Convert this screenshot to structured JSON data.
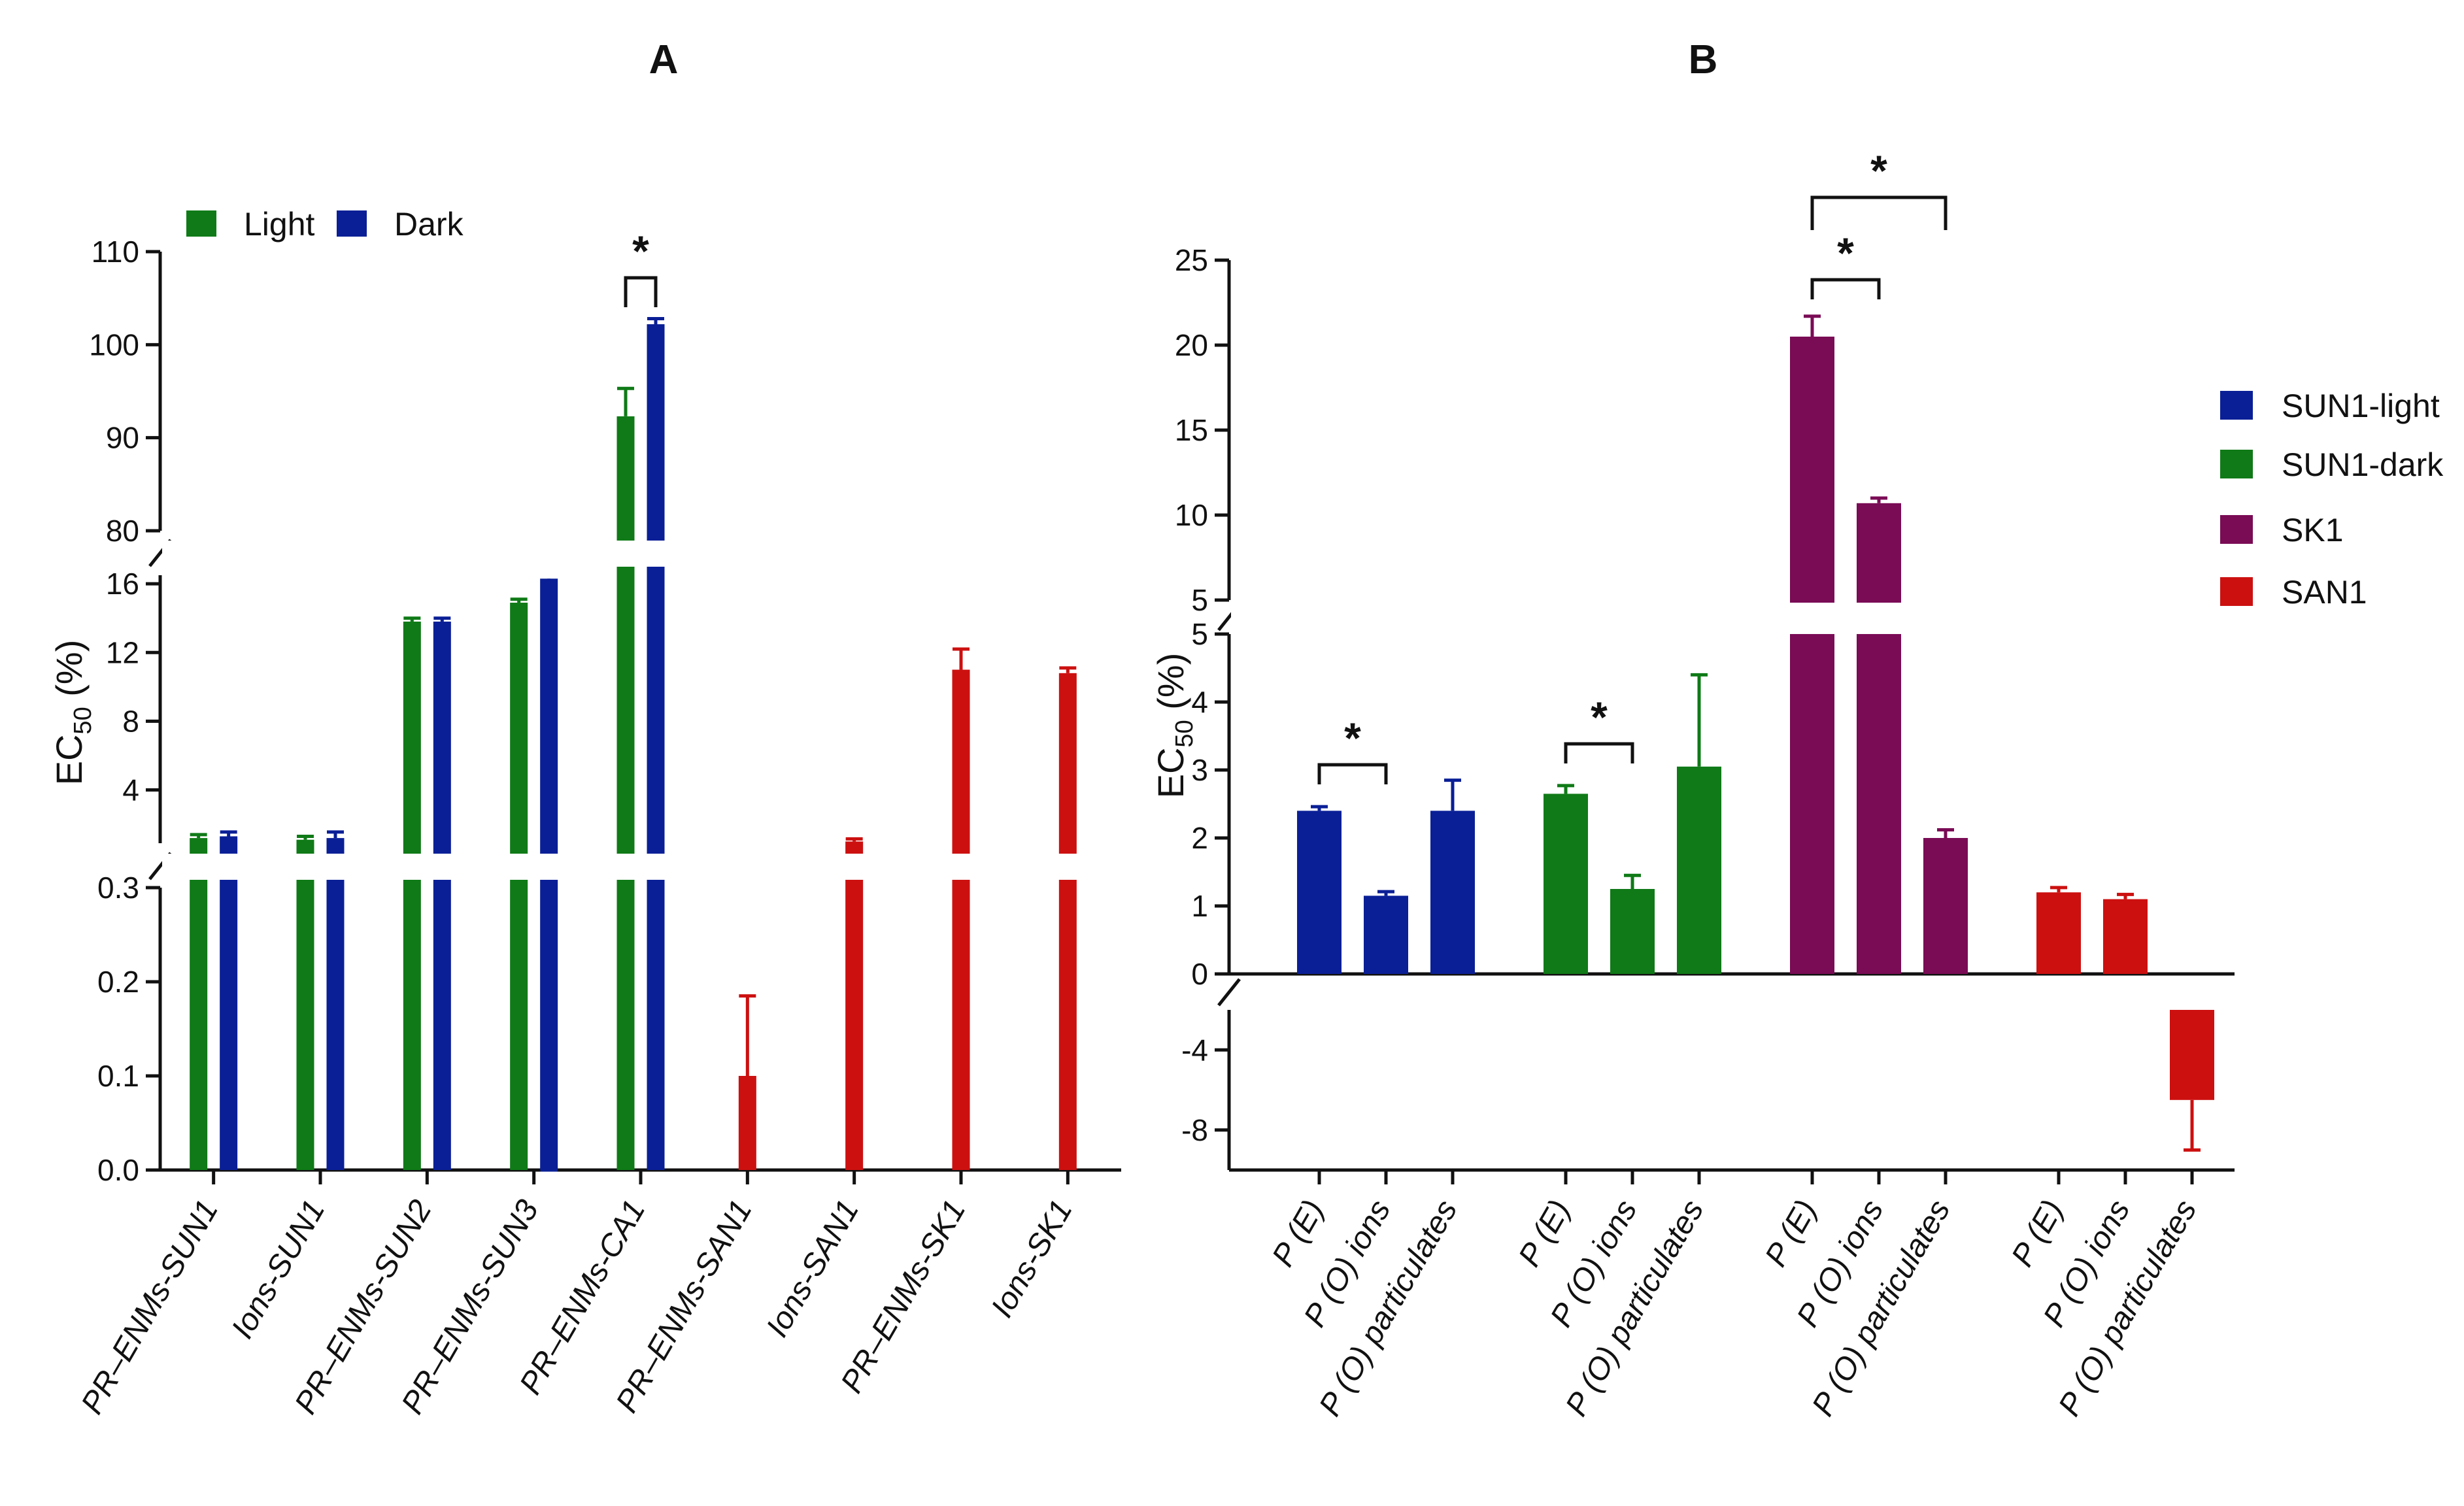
{
  "chart_data": [
    {
      "panel": "A",
      "type": "bar",
      "title": "A",
      "ylabel": "EC50 (%)",
      "ylabel_main": "EC",
      "ylabel_sub": "50",
      "ylabel_unit": " (%)",
      "y_segments": [
        {
          "range": [
            0,
            0.3
          ],
          "ticks": [
            "0.0",
            "0.1",
            "0.2",
            "0.3"
          ]
        },
        {
          "range": [
            0.9,
            16.5
          ],
          "ticks": [
            "4",
            "8",
            "12",
            "16"
          ]
        },
        {
          "range": [
            80,
            110
          ],
          "ticks": [
            "80",
            "90",
            "100",
            "110"
          ]
        }
      ],
      "legend": [
        "Light",
        "Dark"
      ],
      "categories": [
        "PR–ENMs-SUN1",
        "Ions-SUN1",
        "PR–ENMs-SUN2",
        "PR–ENMs-SUN3",
        "PR–ENMs-CA1",
        "PR–ENMs-SAN1",
        "Ions-SAN1",
        "PR–ENMs-SK1",
        "Ions-SK1"
      ],
      "series": [
        {
          "name": "Light",
          "color": "#0f7a17",
          "values": [
            1.2,
            1.1,
            13.8,
            14.9,
            92.3,
            null,
            null,
            null,
            null
          ],
          "errors": [
            0.2,
            0.2,
            0.2,
            0.2,
            3.0,
            null,
            null,
            null,
            null
          ]
        },
        {
          "name": "Dark",
          "color": "#0a1f96",
          "values": [
            1.3,
            1.2,
            13.8,
            16.3,
            102.2,
            null,
            null,
            null,
            null
          ],
          "errors": [
            0.25,
            0.35,
            0.2,
            0.3,
            0.6,
            null,
            null,
            null,
            null
          ]
        },
        {
          "name": "",
          "color": "#cc1010",
          "values": [
            null,
            null,
            null,
            null,
            null,
            0.1,
            1.0,
            11.0,
            10.8
          ],
          "errors": [
            null,
            null,
            null,
            null,
            null,
            0.085,
            0.15,
            1.2,
            0.3
          ]
        }
      ],
      "significance": [
        {
          "category": "PR–ENMs-CA1",
          "label": "*"
        }
      ]
    },
    {
      "panel": "B",
      "type": "bar",
      "title": "B",
      "ylabel": "EC50 (%)",
      "ylabel_main": "EC",
      "ylabel_sub": "50",
      "ylabel_unit": " (%)",
      "y_segments": [
        {
          "range": [
            -10,
            -2
          ],
          "ticks": [
            "-4",
            "-8"
          ]
        },
        {
          "range": [
            0,
            5
          ],
          "ticks": [
            "0",
            "1",
            "2",
            "3",
            "4",
            "5"
          ]
        },
        {
          "range": [
            5,
            25
          ],
          "ticks": [
            "5",
            "10",
            "15",
            "20",
            "25"
          ]
        }
      ],
      "legend": [
        "SUN1-light",
        "SUN1-dark",
        "SK1",
        "SAN1"
      ],
      "group_labels": [
        "P (E)",
        "P (O) ions",
        "P (O) particulates"
      ],
      "groups": [
        {
          "name": "SUN1-light",
          "color": "#0a1f96",
          "values": [
            2.4,
            1.15,
            2.4
          ],
          "errors": [
            0.06,
            0.06,
            0.45
          ]
        },
        {
          "name": "SUN1-dark",
          "color": "#0f7a17",
          "values": [
            2.65,
            1.25,
            3.05
          ],
          "errors": [
            0.12,
            0.2,
            1.35
          ]
        },
        {
          "name": "SK1",
          "color": "#7a0b55",
          "values": [
            20.5,
            10.7,
            2.0
          ],
          "errors": [
            1.2,
            0.3,
            0.12
          ]
        },
        {
          "name": "SAN1",
          "color": "#cc1010",
          "values": [
            1.2,
            1.1,
            -6.5
          ],
          "errors": [
            0.07,
            0.07,
            2.5
          ]
        }
      ],
      "significance": [
        {
          "group": "SUN1-light",
          "between": [
            "P (E)",
            "P (O) ions"
          ],
          "label": "*"
        },
        {
          "group": "SUN1-dark",
          "between": [
            "P (E)",
            "P (O) ions"
          ],
          "label": "*"
        },
        {
          "group": "SK1",
          "between": [
            "P (E)",
            "P (O) ions"
          ],
          "label": "*"
        },
        {
          "group": "SK1",
          "between": [
            "P (E)",
            "P (O) particulates"
          ],
          "label": "*"
        }
      ]
    }
  ]
}
